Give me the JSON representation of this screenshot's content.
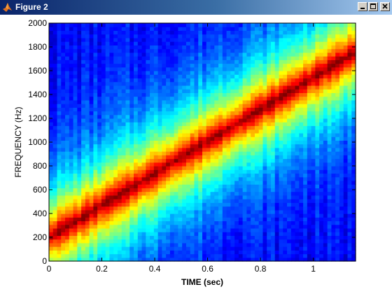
{
  "window": {
    "title": "Figure 2",
    "icon": "matlab-logo-icon",
    "controls": [
      "minimize-icon",
      "maximize-icon",
      "close-icon"
    ]
  },
  "chart_data": {
    "type": "heatmap",
    "subtype": "spectrogram",
    "title": "",
    "xlabel": "TIME (sec)",
    "ylabel": "FREQUENCY (Hz)",
    "xlim": [
      0,
      1.16
    ],
    "ylim": [
      0,
      2000
    ],
    "xticks": [
      0,
      0.2,
      0.4,
      0.6,
      0.8,
      1
    ],
    "xtick_labels": [
      "0",
      "0.2",
      "0.4",
      "0.6",
      "0.8",
      "1"
    ],
    "yticks": [
      0,
      200,
      400,
      600,
      800,
      1000,
      1200,
      1400,
      1600,
      1800,
      2000
    ],
    "ytick_labels": [
      "0",
      "200",
      "400",
      "600",
      "800",
      "1000",
      "1200",
      "1400",
      "1600",
      "1800",
      "2000"
    ],
    "colormap": "jet",
    "grid": false,
    "ridge": {
      "description": "linear chirp",
      "start": {
        "time": 0,
        "frequency": 200
      },
      "end": {
        "time": 1.16,
        "frequency": 1760
      }
    },
    "time_bins": 76,
    "frequency_bins": 65
  }
}
